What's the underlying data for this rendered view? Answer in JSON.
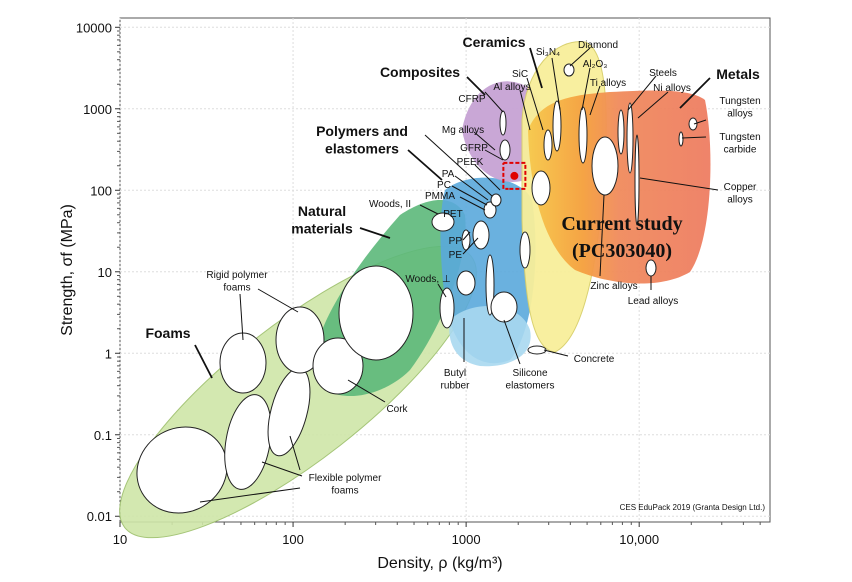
{
  "chart_data": {
    "type": "ashby",
    "x_label": "Density, ρ (kg/m³)",
    "y_label": "Strength, σf (MPa)",
    "log_x": true,
    "log_y": true,
    "xlim": [
      10,
      57000
    ],
    "ylim": [
      0.0085,
      13000
    ],
    "xticks": [
      10,
      100,
      1000,
      {
        "value": 10000,
        "label": "10,000"
      }
    ],
    "yticks": [
      0.01,
      0.1,
      1,
      10,
      100,
      1000,
      10000
    ],
    "points": [
      {
        "name": "Current study (PC303040)",
        "x": 1900,
        "y": 150,
        "color": "#e00000"
      }
    ],
    "annotations": [
      "Foams",
      "Natural materials",
      "Polymers and elastomers",
      "Composites",
      "Ceramics",
      "Metals",
      "Rigid polymer foams",
      "Flexible polymer foams",
      "Cork",
      "Woods, II",
      "Woods, ⊥",
      "PA",
      "PC",
      "PMMA",
      "PET",
      "PP",
      "PE",
      "PEEK",
      "GFRP",
      "Mg alloys",
      "CFRP",
      "Al alloys",
      "SiC",
      "Si₃N₄",
      "Diamond",
      "Al₂O₃",
      "Ti alloys",
      "Steels",
      "Ni alloys",
      "Tungsten alloys",
      "Tungsten carbide",
      "Copper alloys",
      "Zinc alloys",
      "Lead alloys",
      "Concrete",
      "Silicone elastomers",
      "Butyl rubber",
      "CES EduPack 2019 (Granta Design Ltd.)"
    ]
  }
}
